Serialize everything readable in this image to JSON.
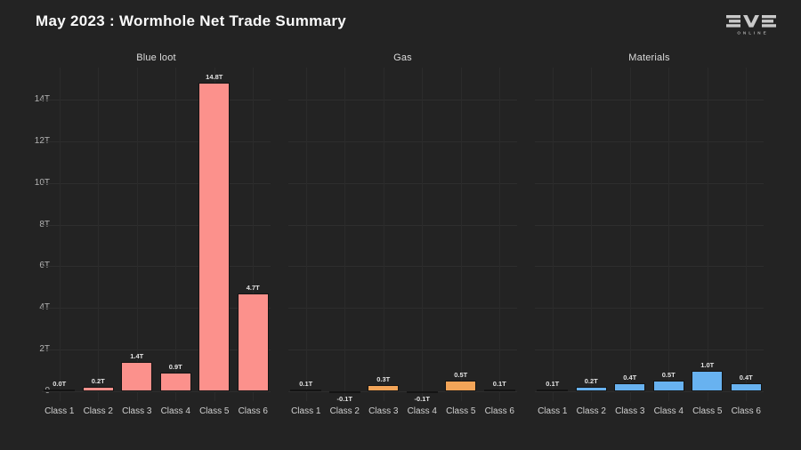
{
  "header": {
    "title": "May 2023 : Wormhole Net Trade Summary",
    "logo": {
      "brand": "EVE",
      "sub": "ONLINE"
    }
  },
  "colors": {
    "background": "#232323",
    "gridline": "#2e2e2e",
    "blue_loot_bar": "#fc918c",
    "gas_bar": "#f2a458",
    "materials_bar": "#68b2f0"
  },
  "chart_data": {
    "type": "bar",
    "title": "May 2023 : Wormhole Net Trade Summary",
    "categories": [
      "Class 1",
      "Class 2",
      "Class 3",
      "Class 4",
      "Class 5",
      "Class 6"
    ],
    "y_ticks": [
      {
        "label": "0",
        "value": 0
      },
      {
        "label": "2T",
        "value": 2
      },
      {
        "label": "4T",
        "value": 4
      },
      {
        "label": "6T",
        "value": 6
      },
      {
        "label": "8T",
        "value": 8
      },
      {
        "label": "10T",
        "value": 10
      },
      {
        "label": "12T",
        "value": 12
      },
      {
        "label": "14T",
        "value": 14
      }
    ],
    "ylim": [
      -0.6,
      15.5
    ],
    "grid": true,
    "unit": "trillion ISK",
    "legend_position": "none",
    "panels": [
      {
        "title": "Blue loot",
        "color": "#fc918c",
        "values": [
          0.0,
          0.2,
          1.4,
          0.9,
          14.8,
          4.7
        ],
        "value_labels": [
          "0.0T",
          "0.2T",
          "1.4T",
          "0.9T",
          "14.8T",
          "4.7T"
        ]
      },
      {
        "title": "Gas",
        "color": "#f2a458",
        "values": [
          0.1,
          -0.1,
          0.3,
          -0.1,
          0.5,
          0.1
        ],
        "value_labels": [
          "0.1T",
          "-0.1T",
          "0.3T",
          "-0.1T",
          "0.5T",
          "0.1T"
        ]
      },
      {
        "title": "Materials",
        "color": "#68b2f0",
        "values": [
          0.1,
          0.2,
          0.4,
          0.5,
          1.0,
          0.4
        ],
        "value_labels": [
          "0.1T",
          "0.2T",
          "0.4T",
          "0.5T",
          "1.0T",
          "0.4T"
        ]
      }
    ]
  }
}
